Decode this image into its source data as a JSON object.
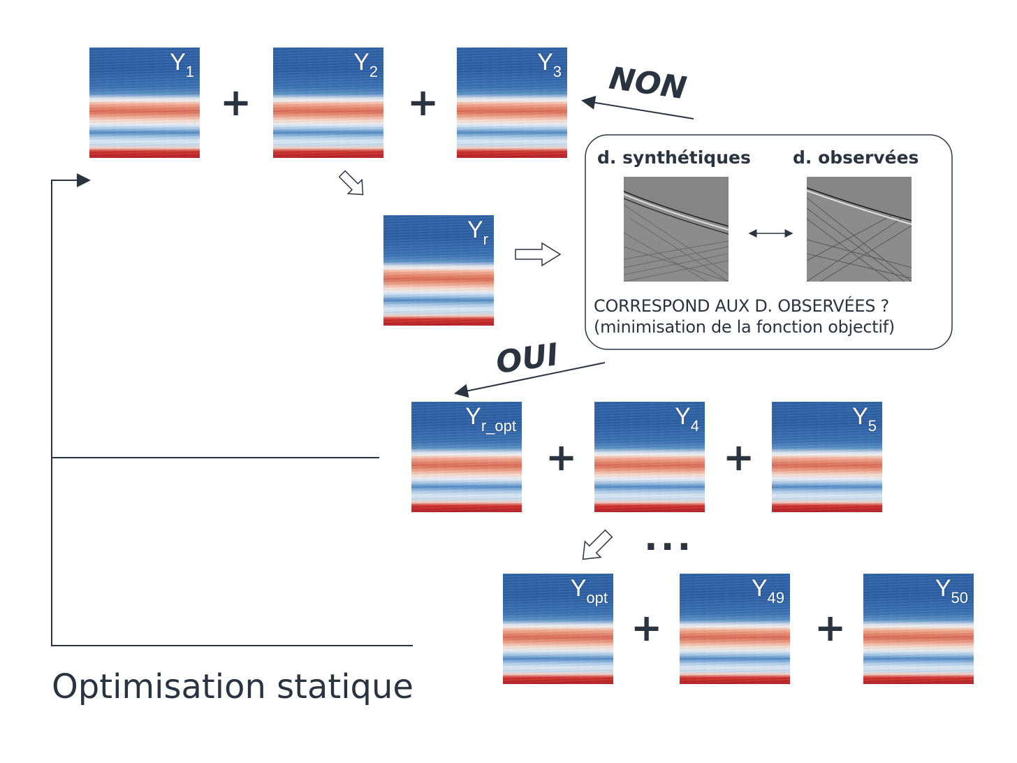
{
  "fields": [
    {
      "id": "y1",
      "base": "Y",
      "sub": "1"
    },
    {
      "id": "y2",
      "base": "Y",
      "sub": "2"
    },
    {
      "id": "y3",
      "base": "Y",
      "sub": "3"
    },
    {
      "id": "yr",
      "base": "Y",
      "sub": "r"
    },
    {
      "id": "yropt",
      "base": "Y",
      "sub": "r_opt"
    },
    {
      "id": "y4",
      "base": "Y",
      "sub": "4"
    },
    {
      "id": "y5",
      "base": "Y",
      "sub": "5"
    },
    {
      "id": "yopt",
      "base": "Y",
      "sub": "opt"
    },
    {
      "id": "y49",
      "base": "Y",
      "sub": "49"
    },
    {
      "id": "y50",
      "base": "Y",
      "sub": "50"
    }
  ],
  "plus_sign": "+",
  "ellipsis": "...",
  "labels": {
    "non": "NON",
    "oui": "OUI",
    "synthetic": "d. synthétiques",
    "observed": "d. observées",
    "question_line1": "CORRESPOND AUX D. OBSERVÉES ?",
    "question_line2": "(minimisation de la fonction objectif)",
    "title": "Optimisation statique"
  },
  "colors": {
    "ink": "#2a3441",
    "field_blue": "#2e62a6",
    "field_red": "#d86a55",
    "seismic_gray": "#8a8a8a"
  }
}
